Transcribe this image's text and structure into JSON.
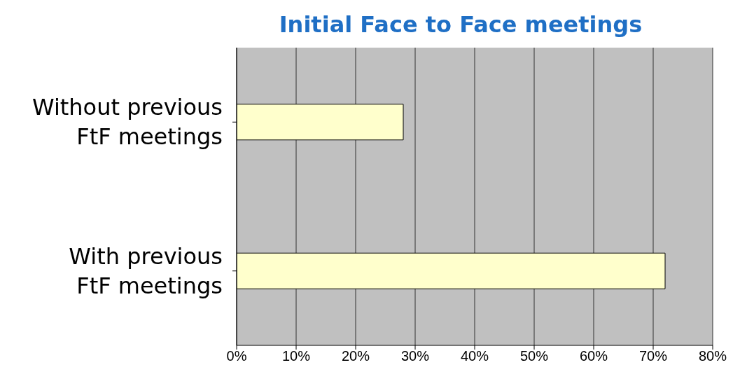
{
  "chart_data": {
    "type": "bar",
    "orientation": "horizontal",
    "title": "Initial Face to Face  meetings",
    "categories": [
      "Without previous FtF meetings",
      "With previous FtF meetings"
    ],
    "values": [
      28,
      72
    ],
    "color": "#ffffcc",
    "xlim": [
      0,
      80
    ],
    "xticks": [
      {
        "value": 0,
        "label": "0%"
      },
      {
        "value": 10,
        "label": "10%"
      },
      {
        "value": 20,
        "label": "20%"
      },
      {
        "value": 30,
        "label": "30%"
      },
      {
        "value": 40,
        "label": "40%"
      },
      {
        "value": 50,
        "label": "50%"
      },
      {
        "value": 60,
        "label": "60%"
      },
      {
        "value": 70,
        "label": "70%"
      },
      {
        "value": 80,
        "label": "80%"
      }
    ],
    "grid": "x"
  }
}
